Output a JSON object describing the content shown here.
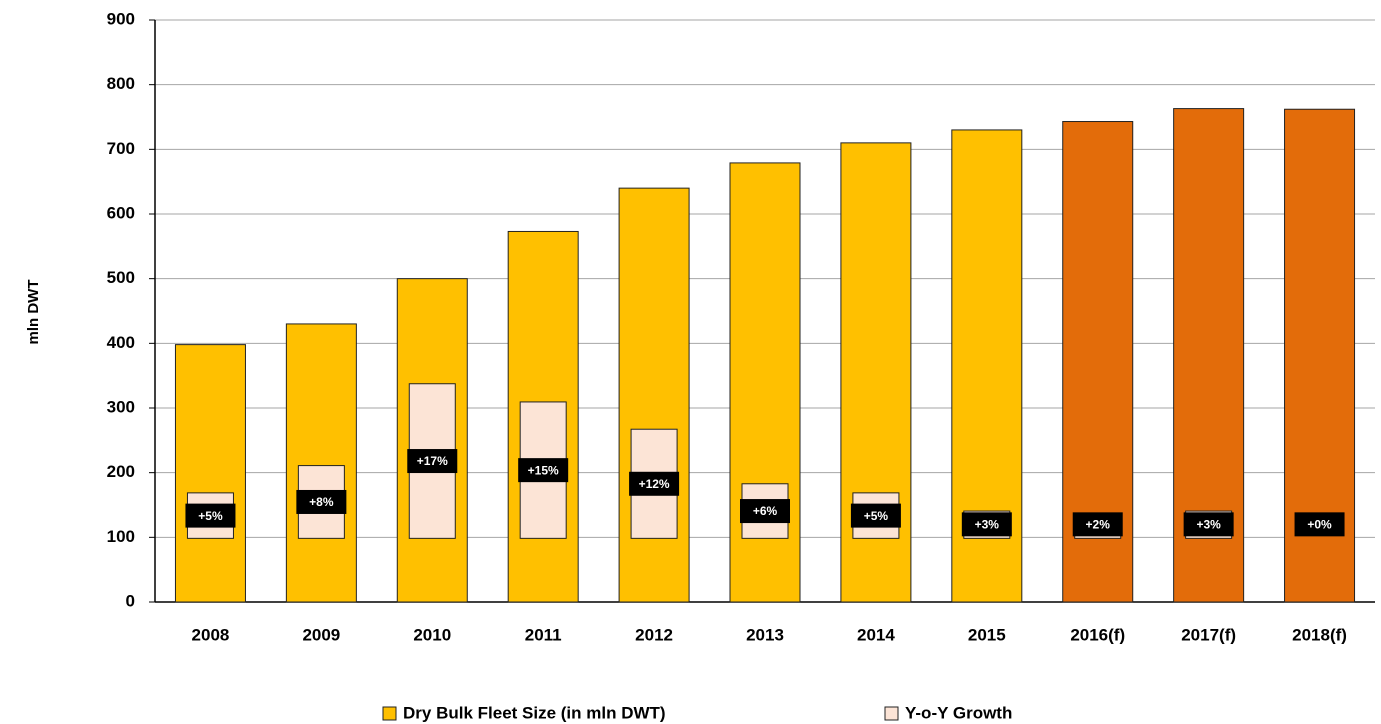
{
  "chart_data": {
    "type": "bar",
    "y_label": "mln DWT",
    "categories": [
      "2008",
      "2009",
      "2010",
      "2011",
      "2012",
      "2013",
      "2014",
      "2015",
      "2016(f)",
      "2017(f)",
      "2018(f)"
    ],
    "series": [
      {
        "name": "Dry Bulk Fleet Size (in mln DWT)",
        "color": "#FFC000",
        "colors": [
          "#FFC000",
          "#FFC000",
          "#FFC000",
          "#FFC000",
          "#FFC000",
          "#FFC000",
          "#FFC000",
          "#FFC000",
          "#E36C0A",
          "#E36C0A",
          "#E36C0A"
        ],
        "values": [
          398,
          430,
          500,
          573,
          640,
          679,
          710,
          730,
          743,
          763,
          762
        ]
      },
      {
        "name": "Y-o-Y Growth",
        "color": "#FCE4D6",
        "axis": "y2",
        "values": [
          5,
          8,
          17,
          15,
          12,
          6,
          5,
          3,
          2,
          3,
          0
        ],
        "value_labels": [
          "+5%",
          "+8%",
          "+17%",
          "+15%",
          "+12%",
          "+6%",
          "+5%",
          "+3%",
          "+2%",
          "+3%",
          "+0%"
        ]
      }
    ],
    "ylim": [
      0,
      900
    ],
    "yticks": [
      0,
      100,
      200,
      300,
      400,
      500,
      600,
      700,
      800,
      900
    ],
    "y2lim": [
      -7,
      57
    ],
    "grid": true
  }
}
